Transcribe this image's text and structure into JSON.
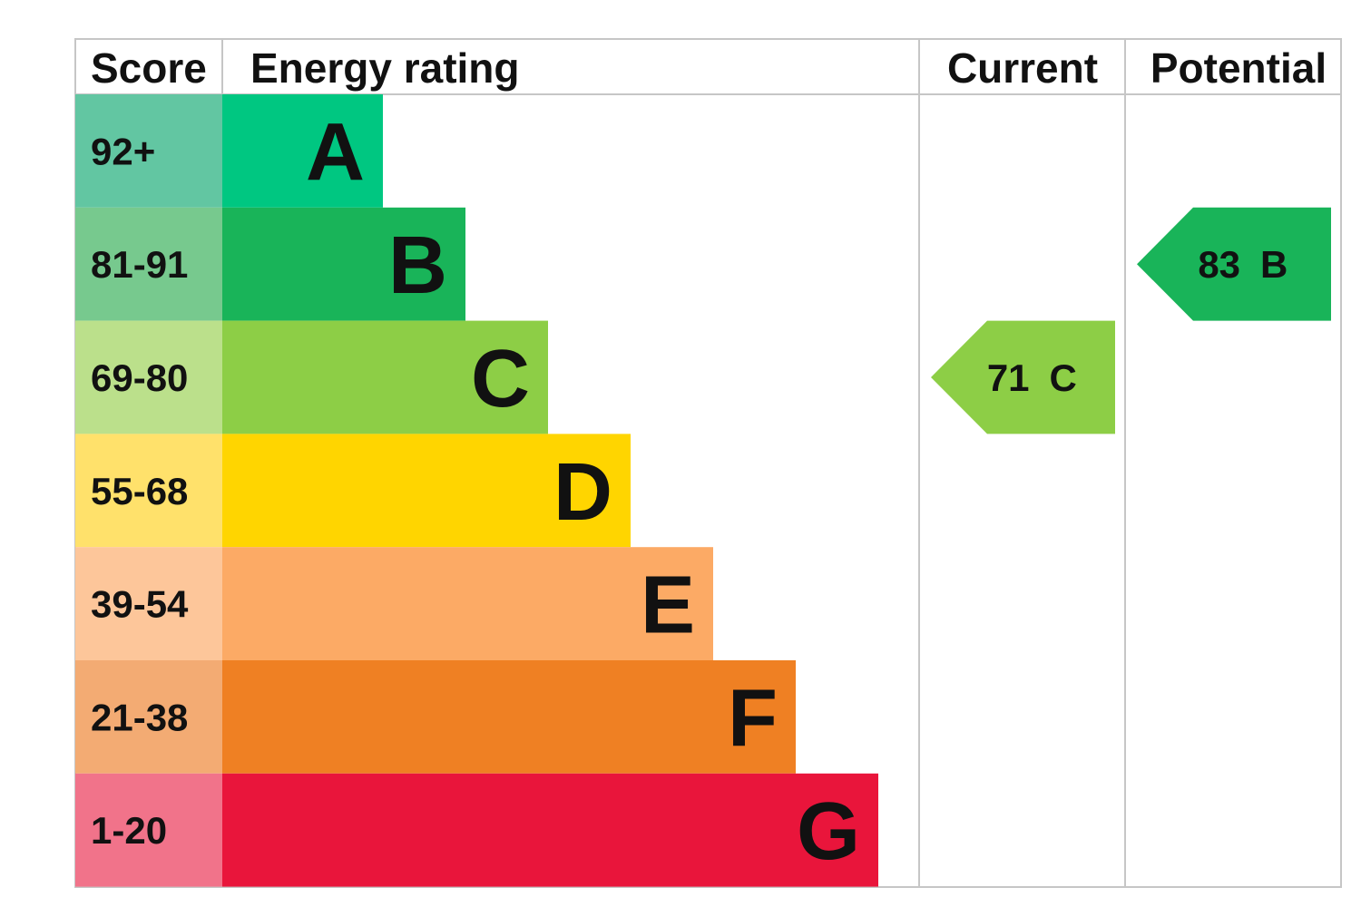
{
  "headers": {
    "score": "Score",
    "energy_rating": "Energy rating",
    "current": "Current",
    "potential": "Potential"
  },
  "chart_data": {
    "type": "table",
    "bands": [
      {
        "score": "92+",
        "letter": "A",
        "min": 92,
        "max": null,
        "color": "#00c781",
        "score_bg": "#62c6a2"
      },
      {
        "score": "81-91",
        "letter": "B",
        "min": 81,
        "max": 91,
        "color": "#19b459",
        "score_bg": "#77c98e"
      },
      {
        "score": "69-80",
        "letter": "C",
        "min": 69,
        "max": 80,
        "color": "#8dce46",
        "score_bg": "#bbe08b"
      },
      {
        "score": "55-68",
        "letter": "D",
        "min": 55,
        "max": 68,
        "color": "#ffd500",
        "score_bg": "#ffe16b"
      },
      {
        "score": "39-54",
        "letter": "E",
        "min": 39,
        "max": 54,
        "color": "#fcaa65",
        "score_bg": "#fdc69a"
      },
      {
        "score": "21-38",
        "letter": "F",
        "min": 21,
        "max": 38,
        "color": "#ef8023",
        "score_bg": "#f3ab73"
      },
      {
        "score": "1-20",
        "letter": "G",
        "min": 1,
        "max": 20,
        "color": "#e9153b",
        "score_bg": "#f1738a"
      }
    ],
    "current": {
      "score": 71,
      "letter": "C",
      "color": "#8dce46"
    },
    "potential": {
      "score": 83,
      "letter": "B",
      "color": "#19b459"
    }
  }
}
